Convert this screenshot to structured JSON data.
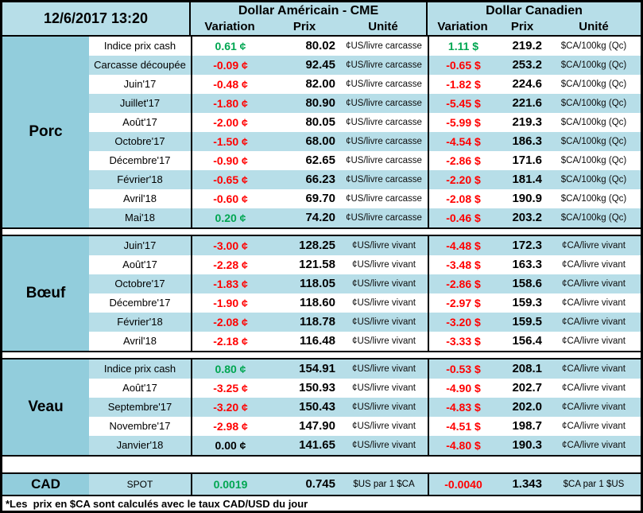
{
  "header": {
    "datetime": "12/6/2017 13:20",
    "us_title": "Dollar Américain - CME",
    "ca_title": "Dollar Canadien",
    "col_variation": "Variation",
    "col_prix": "Prix",
    "col_unite": "Unité"
  },
  "colors": {
    "green": "#00A651",
    "red": "#FF0000",
    "black": "#000000",
    "medium_blue": "#92CDDC",
    "light_blue": "#B7DEE8"
  },
  "sections": [
    {
      "label": "Porc",
      "rows": [
        {
          "label": "Indice prix cash",
          "us_var": "0.61 ¢",
          "us_color": "green",
          "us_prix": "80.02",
          "us_unit": "¢US/livre carcasse",
          "ca_var": "1.11 $",
          "ca_color": "green",
          "ca_prix": "219.2",
          "ca_unit": "$CA/100kg (Qc)"
        },
        {
          "label": "Carcasse découpée",
          "us_var": "-0.09 ¢",
          "us_color": "red",
          "us_prix": "92.45",
          "us_unit": "¢US/livre carcasse",
          "ca_var": "-0.65 $",
          "ca_color": "red",
          "ca_prix": "253.2",
          "ca_unit": "$CA/100kg (Qc)"
        },
        {
          "label": "Juin'17",
          "us_var": "-0.48 ¢",
          "us_color": "red",
          "us_prix": "82.00",
          "us_unit": "¢US/livre carcasse",
          "ca_var": "-1.82 $",
          "ca_color": "red",
          "ca_prix": "224.6",
          "ca_unit": "$CA/100kg (Qc)"
        },
        {
          "label": "Juillet'17",
          "us_var": "-1.80 ¢",
          "us_color": "red",
          "us_prix": "80.90",
          "us_unit": "¢US/livre carcasse",
          "ca_var": "-5.45 $",
          "ca_color": "red",
          "ca_prix": "221.6",
          "ca_unit": "$CA/100kg (Qc)"
        },
        {
          "label": "Août'17",
          "us_var": "-2.00 ¢",
          "us_color": "red",
          "us_prix": "80.05",
          "us_unit": "¢US/livre carcasse",
          "ca_var": "-5.99 $",
          "ca_color": "red",
          "ca_prix": "219.3",
          "ca_unit": "$CA/100kg (Qc)"
        },
        {
          "label": "Octobre'17",
          "us_var": "-1.50 ¢",
          "us_color": "red",
          "us_prix": "68.00",
          "us_unit": "¢US/livre carcasse",
          "ca_var": "-4.54 $",
          "ca_color": "red",
          "ca_prix": "186.3",
          "ca_unit": "$CA/100kg (Qc)"
        },
        {
          "label": "Décembre'17",
          "us_var": "-0.90 ¢",
          "us_color": "red",
          "us_prix": "62.65",
          "us_unit": "¢US/livre carcasse",
          "ca_var": "-2.86 $",
          "ca_color": "red",
          "ca_prix": "171.6",
          "ca_unit": "$CA/100kg (Qc)"
        },
        {
          "label": "Février'18",
          "us_var": "-0.65 ¢",
          "us_color": "red",
          "us_prix": "66.23",
          "us_unit": "¢US/livre carcasse",
          "ca_var": "-2.20 $",
          "ca_color": "red",
          "ca_prix": "181.4",
          "ca_unit": "$CA/100kg (Qc)"
        },
        {
          "label": "Avril'18",
          "us_var": "-0.60 ¢",
          "us_color": "red",
          "us_prix": "69.70",
          "us_unit": "¢US/livre carcasse",
          "ca_var": "-2.08 $",
          "ca_color": "red",
          "ca_prix": "190.9",
          "ca_unit": "$CA/100kg (Qc)"
        },
        {
          "label": "Mai'18",
          "us_var": "0.20 ¢",
          "us_color": "green",
          "us_prix": "74.20",
          "us_unit": "¢US/livre carcasse",
          "ca_var": "-0.46 $",
          "ca_color": "red",
          "ca_prix": "203.2",
          "ca_unit": "$CA/100kg (Qc)"
        }
      ]
    },
    {
      "label": "Bœuf",
      "rows": [
        {
          "label": "Juin'17",
          "us_var": "-3.00 ¢",
          "us_color": "red",
          "us_prix": "128.25",
          "us_unit": "¢US/livre vivant",
          "ca_var": "-4.48 $",
          "ca_color": "red",
          "ca_prix": "172.3",
          "ca_unit": "¢CA/livre vivant"
        },
        {
          "label": "Août'17",
          "us_var": "-2.28 ¢",
          "us_color": "red",
          "us_prix": "121.58",
          "us_unit": "¢US/livre vivant",
          "ca_var": "-3.48 $",
          "ca_color": "red",
          "ca_prix": "163.3",
          "ca_unit": "¢CA/livre vivant"
        },
        {
          "label": "Octobre'17",
          "us_var": "-1.83 ¢",
          "us_color": "red",
          "us_prix": "118.05",
          "us_unit": "¢US/livre vivant",
          "ca_var": "-2.86 $",
          "ca_color": "red",
          "ca_prix": "158.6",
          "ca_unit": "¢CA/livre vivant"
        },
        {
          "label": "Décembre'17",
          "us_var": "-1.90 ¢",
          "us_color": "red",
          "us_prix": "118.60",
          "us_unit": "¢US/livre vivant",
          "ca_var": "-2.97 $",
          "ca_color": "red",
          "ca_prix": "159.3",
          "ca_unit": "¢CA/livre vivant"
        },
        {
          "label": "Février'18",
          "us_var": "-2.08 ¢",
          "us_color": "red",
          "us_prix": "118.78",
          "us_unit": "¢US/livre vivant",
          "ca_var": "-3.20 $",
          "ca_color": "red",
          "ca_prix": "159.5",
          "ca_unit": "¢CA/livre vivant"
        },
        {
          "label": "Avril'18",
          "us_var": "-2.18 ¢",
          "us_color": "red",
          "us_prix": "116.48",
          "us_unit": "¢US/livre vivant",
          "ca_var": "-3.33 $",
          "ca_color": "red",
          "ca_prix": "156.4",
          "ca_unit": "¢CA/livre vivant"
        }
      ]
    },
    {
      "label": "Veau",
      "rows": [
        {
          "label": "Indice prix cash",
          "us_var": "0.80 ¢",
          "us_color": "green",
          "us_prix": "154.91",
          "us_unit": "¢US/livre vivant",
          "ca_var": "-0.53 $",
          "ca_color": "red",
          "ca_prix": "208.1",
          "ca_unit": "¢CA/livre vivant"
        },
        {
          "label": "Août'17",
          "us_var": "-3.25 ¢",
          "us_color": "red",
          "us_prix": "150.93",
          "us_unit": "¢US/livre vivant",
          "ca_var": "-4.90 $",
          "ca_color": "red",
          "ca_prix": "202.7",
          "ca_unit": "¢CA/livre vivant"
        },
        {
          "label": "Septembre'17",
          "us_var": "-3.20 ¢",
          "us_color": "red",
          "us_prix": "150.43",
          "us_unit": "¢US/livre vivant",
          "ca_var": "-4.83 $",
          "ca_color": "red",
          "ca_prix": "202.0",
          "ca_unit": "¢CA/livre vivant"
        },
        {
          "label": "Novembre'17",
          "us_var": "-2.98 ¢",
          "us_color": "red",
          "us_prix": "147.90",
          "us_unit": "¢US/livre vivant",
          "ca_var": "-4.51 $",
          "ca_color": "red",
          "ca_prix": "198.7",
          "ca_unit": "¢CA/livre vivant"
        },
        {
          "label": "Janvier'18",
          "us_var": "0.00 ¢",
          "us_color": "black",
          "us_prix": "141.65",
          "us_unit": "¢US/livre vivant",
          "ca_var": "-4.80 $",
          "ca_color": "red",
          "ca_prix": "190.3",
          "ca_unit": "¢CA/livre vivant"
        }
      ]
    }
  ],
  "cad": {
    "label": "CAD",
    "sublabel": "SPOT",
    "us_var": "0.0019",
    "us_color": "green",
    "us_prix": "0.745",
    "us_unit": "$US par 1 $CA",
    "ca_var": "-0.0040",
    "ca_color": "red",
    "ca_prix": "1.343",
    "ca_unit": "$CA par 1 $US"
  },
  "footer": {
    "note": "*Les  prix en $CA sont calculés avec le taux CAD/USD du jour"
  }
}
